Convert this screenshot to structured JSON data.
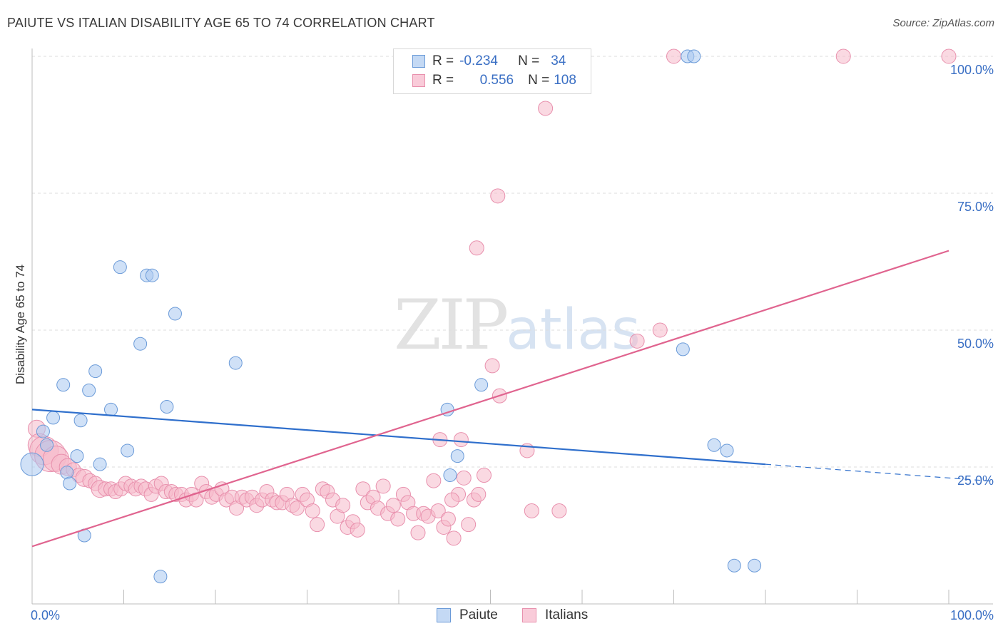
{
  "header": {
    "title": "PAIUTE VS ITALIAN DISABILITY AGE 65 TO 74 CORRELATION CHART",
    "source": "Source: ZipAtlas.com"
  },
  "watermark": {
    "zip": "ZIP",
    "atlas": "atlas"
  },
  "legend": {
    "r_label": "R =",
    "n_label": "N =",
    "rows": [
      {
        "name": "Paiute",
        "r": "-0.234",
        "n": "34"
      },
      {
        "name": "Italians",
        "r": "0.556",
        "n": "108"
      }
    ]
  },
  "colors": {
    "paiute_fill": "#aac8f0",
    "paiute_stroke": "#6a9ad8",
    "paiute_line": "#2f6fcc",
    "italians_fill": "#f6b9cb",
    "italians_stroke": "#e890ad",
    "italians_line": "#e0648f",
    "tick_label": "#3a6fc4",
    "grid": "#dedede"
  },
  "chart_data": {
    "type": "scatter",
    "title": "PAIUTE VS ITALIAN DISABILITY AGE 65 TO 74 CORRELATION CHART",
    "xlabel": "",
    "ylabel": "Disability Age 65 to 74",
    "xlim": [
      0,
      100
    ],
    "ylim": [
      0,
      100
    ],
    "x_tick_labels": [
      "0.0%",
      "100.0%"
    ],
    "y_ticks": [
      25,
      50,
      75,
      100
    ],
    "y_tick_labels": [
      "25.0%",
      "50.0%",
      "75.0%",
      "100.0%"
    ],
    "grid": true,
    "legend_position": "top-center",
    "series": [
      {
        "name": "Paiute",
        "trend": {
          "x0": 0,
          "y0": 35.5,
          "x1": 80,
          "y1": 25.5,
          "dashed_to_x": 100,
          "dashed_to_y": 23.0
        },
        "points": [
          [
            0,
            25.5,
            16
          ],
          [
            1.2,
            31.5,
            9
          ],
          [
            1.6,
            29,
            9
          ],
          [
            2.3,
            34,
            9
          ],
          [
            3.4,
            40,
            9
          ],
          [
            3.8,
            24,
            9
          ],
          [
            4.1,
            22,
            9
          ],
          [
            4.9,
            27,
            9
          ],
          [
            5.3,
            33.5,
            9
          ],
          [
            5.7,
            12.5,
            9
          ],
          [
            6.2,
            39,
            9
          ],
          [
            6.9,
            42.5,
            9
          ],
          [
            7.4,
            25.5,
            9
          ],
          [
            8.6,
            35.5,
            9
          ],
          [
            9.6,
            61.5,
            9
          ],
          [
            10.4,
            28,
            9
          ],
          [
            11.8,
            47.5,
            9
          ],
          [
            12.5,
            60,
            9
          ],
          [
            13.1,
            60,
            9
          ],
          [
            14.0,
            5,
            9
          ],
          [
            14.7,
            36,
            9
          ],
          [
            15.6,
            53,
            9
          ],
          [
            22.2,
            44,
            9
          ],
          [
            45.3,
            35.5,
            9
          ],
          [
            45.6,
            23.5,
            9
          ],
          [
            46.4,
            27,
            9
          ],
          [
            49.0,
            40,
            9
          ],
          [
            71.5,
            100,
            9
          ],
          [
            72.2,
            100,
            9
          ],
          [
            71.0,
            46.5,
            9
          ],
          [
            74.4,
            29,
            9
          ],
          [
            75.8,
            28,
            9
          ],
          [
            76.6,
            7,
            9
          ],
          [
            78.8,
            7,
            9
          ]
        ]
      },
      {
        "name": "Italians",
        "trend": {
          "x0": 0,
          "y0": 10.5,
          "x1": 100,
          "y1": 64.5
        },
        "points": [
          [
            0.5,
            32,
            12
          ],
          [
            0.8,
            29,
            16
          ],
          [
            1.3,
            28,
            20
          ],
          [
            2.0,
            27,
            22
          ],
          [
            2.6,
            26.5,
            18
          ],
          [
            3.2,
            25.5,
            14
          ],
          [
            3.9,
            25,
            12
          ],
          [
            4.5,
            24.5,
            10
          ],
          [
            5.1,
            23.5,
            10
          ],
          [
            5.7,
            23,
            12
          ],
          [
            6.3,
            22.5,
            10
          ],
          [
            6.9,
            22,
            10
          ],
          [
            7.4,
            21,
            12
          ],
          [
            8.0,
            21,
            10
          ],
          [
            8.6,
            21,
            10
          ],
          [
            9.1,
            20.5,
            10
          ],
          [
            9.7,
            21,
            10
          ],
          [
            10.2,
            22,
            10
          ],
          [
            10.8,
            21.5,
            10
          ],
          [
            11.3,
            21,
            10
          ],
          [
            11.9,
            21.5,
            10
          ],
          [
            12.4,
            21,
            10
          ],
          [
            13.0,
            20,
            10
          ],
          [
            13.5,
            21.5,
            10
          ],
          [
            14.1,
            22,
            10
          ],
          [
            14.6,
            20.5,
            10
          ],
          [
            15.2,
            20.5,
            10
          ],
          [
            15.7,
            20,
            10
          ],
          [
            16.3,
            20,
            10
          ],
          [
            16.8,
            19,
            10
          ],
          [
            17.4,
            20,
            10
          ],
          [
            17.9,
            19,
            10
          ],
          [
            18.5,
            22,
            10
          ],
          [
            19.0,
            20.5,
            10
          ],
          [
            19.6,
            19.5,
            10
          ],
          [
            20.1,
            20,
            10
          ],
          [
            20.7,
            21,
            10
          ],
          [
            21.2,
            19,
            10
          ],
          [
            21.8,
            19.5,
            10
          ],
          [
            22.3,
            17.5,
            10
          ],
          [
            22.9,
            19.5,
            10
          ],
          [
            23.4,
            19,
            10
          ],
          [
            24.0,
            19.5,
            10
          ],
          [
            24.5,
            18,
            10
          ],
          [
            25.1,
            19,
            10
          ],
          [
            25.6,
            20.5,
            10
          ],
          [
            26.2,
            19,
            10
          ],
          [
            26.7,
            18.5,
            10
          ],
          [
            27.3,
            18.5,
            10
          ],
          [
            27.8,
            20,
            10
          ],
          [
            28.4,
            18,
            10
          ],
          [
            28.9,
            17.5,
            10
          ],
          [
            29.5,
            20,
            10
          ],
          [
            30.0,
            19,
            10
          ],
          [
            30.6,
            17,
            10
          ],
          [
            31.1,
            14.5,
            10
          ],
          [
            31.7,
            21,
            10
          ],
          [
            32.2,
            20.5,
            10
          ],
          [
            32.8,
            19,
            10
          ],
          [
            33.3,
            16,
            10
          ],
          [
            33.9,
            18,
            10
          ],
          [
            34.4,
            14,
            10
          ],
          [
            35.0,
            15,
            10
          ],
          [
            35.5,
            13.5,
            10
          ],
          [
            36.1,
            21,
            10
          ],
          [
            36.6,
            18.5,
            10
          ],
          [
            37.2,
            19.5,
            10
          ],
          [
            37.7,
            17.5,
            10
          ],
          [
            38.3,
            21.5,
            10
          ],
          [
            38.8,
            16.5,
            10
          ],
          [
            39.4,
            18,
            10
          ],
          [
            39.9,
            15.5,
            10
          ],
          [
            40.5,
            20,
            10
          ],
          [
            41.0,
            18.5,
            10
          ],
          [
            41.6,
            16.5,
            10
          ],
          [
            42.1,
            13,
            10
          ],
          [
            42.7,
            16.5,
            10
          ],
          [
            43.2,
            16,
            10
          ],
          [
            43.8,
            22.5,
            10
          ],
          [
            44.3,
            17,
            10
          ],
          [
            44.9,
            14,
            10
          ],
          [
            45.4,
            15.5,
            10
          ],
          [
            46.0,
            12,
            10
          ],
          [
            46.5,
            20,
            10
          ],
          [
            47.1,
            23,
            10
          ],
          [
            47.6,
            14.5,
            10
          ],
          [
            48.2,
            19,
            10
          ],
          [
            48.7,
            20,
            10
          ],
          [
            49.3,
            23.5,
            10
          ],
          [
            50.2,
            43.5,
            10
          ],
          [
            51.0,
            38,
            10
          ],
          [
            48.5,
            65,
            10
          ],
          [
            50.8,
            74.5,
            10
          ],
          [
            54.5,
            17,
            10
          ],
          [
            54.0,
            28,
            10
          ],
          [
            56.0,
            90.5,
            10
          ],
          [
            57.5,
            17,
            10
          ],
          [
            66.0,
            48,
            10
          ],
          [
            68.5,
            50,
            10
          ],
          [
            70.0,
            100,
            10
          ],
          [
            88.5,
            100,
            10
          ],
          [
            100,
            100,
            10
          ],
          [
            44.5,
            30,
            10
          ],
          [
            46.8,
            30,
            10
          ],
          [
            45.8,
            19,
            10
          ]
        ]
      }
    ]
  }
}
